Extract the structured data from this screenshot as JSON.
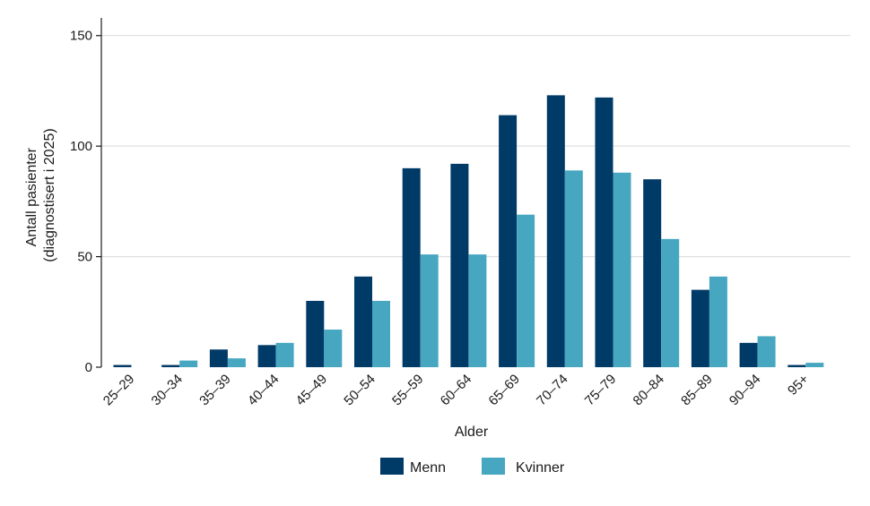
{
  "chart_data": {
    "type": "bar",
    "xlabel": "Alder",
    "ylabel_lines": [
      "Antall pasienter",
      "(diagnostisert i 2025)"
    ],
    "ylim": [
      0,
      158
    ],
    "yticks": [
      0,
      50,
      100,
      150
    ],
    "grid": true,
    "legend_position": "bottom-center",
    "categories": [
      "25–29",
      "30–34",
      "35–39",
      "40–44",
      "45–49",
      "50–54",
      "55–59",
      "60–64",
      "65–69",
      "70–74",
      "75–79",
      "80–84",
      "85–89",
      "90–94",
      "95+"
    ],
    "series": [
      {
        "name": "Menn",
        "color": "#003a66",
        "values": [
          1,
          1,
          8,
          10,
          30,
          41,
          90,
          92,
          114,
          123,
          122,
          85,
          35,
          11,
          1
        ]
      },
      {
        "name": "Kvinner",
        "color": "#47a7c1",
        "values": [
          0,
          3,
          4,
          11,
          17,
          30,
          51,
          51,
          69,
          89,
          88,
          58,
          41,
          14,
          2
        ]
      }
    ]
  }
}
